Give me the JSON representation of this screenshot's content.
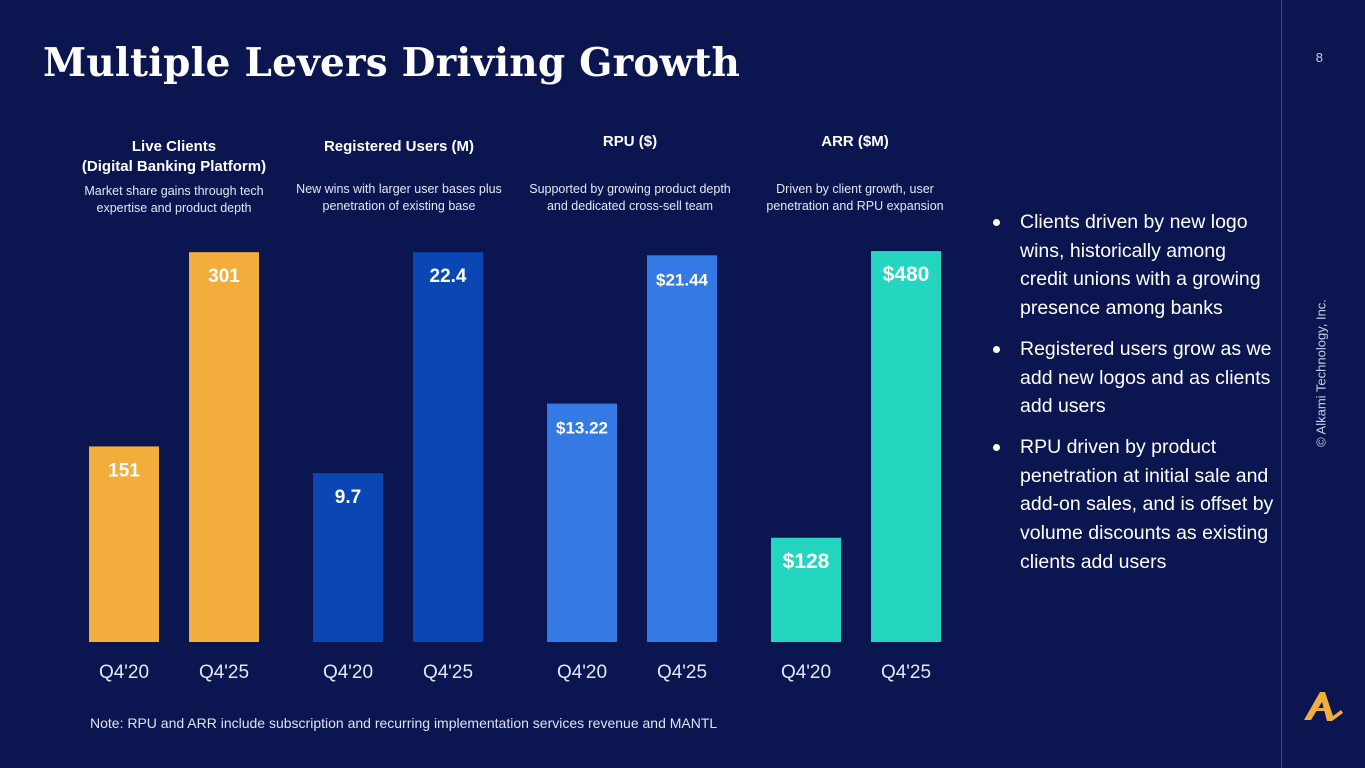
{
  "slide": {
    "title": "Multiple Levers Driving Growth",
    "page_number": "8",
    "copyright": "© Alkami Technology, Inc.",
    "note": "Note: RPU and ARR include subscription and recurring implementation services revenue and MANTL"
  },
  "panels": [
    {
      "title": "Live Clients",
      "subtitle": "(Digital Banking Platform)",
      "description_1": "Market share gains through tech",
      "description_2": "expertise and product depth"
    },
    {
      "title": "Registered Users (M)",
      "description_1": "New wins with larger user bases plus",
      "description_2": "penetration of existing base"
    },
    {
      "title": "RPU ($)",
      "description_1": "Supported by growing product depth",
      "description_2": "and dedicated cross-sell team"
    },
    {
      "title": "ARR ($M)",
      "description_1": "Driven by client growth, user",
      "description_2": "penetration and RPU expansion"
    }
  ],
  "bullets": [
    "Clients driven by new logo wins, historically among credit unions with a growing presence among banks",
    "Registered users grow as we add new logos and as clients add users",
    "RPU driven by product penetration at initial sale and add-on sales, and is offset by volume discounts as existing clients add users"
  ],
  "chart_data": [
    {
      "type": "bar",
      "title": "Live Clients",
      "categories": [
        "Q4'20",
        "Q4'25"
      ],
      "values": [
        151,
        301
      ],
      "labels": [
        "151",
        "301"
      ],
      "ylim": [
        0,
        305
      ],
      "color": "#f2ad3c"
    },
    {
      "type": "bar",
      "title": "Registered Users (M)",
      "categories": [
        "Q4'20",
        "Q4'25"
      ],
      "values": [
        9.7,
        22.4
      ],
      "labels": [
        "9.7",
        "22.4"
      ],
      "ylim": [
        0,
        22.7
      ],
      "color": "#0a47b5"
    },
    {
      "type": "bar",
      "title": "RPU ($)",
      "categories": [
        "Q4'20",
        "Q4'25"
      ],
      "values": [
        13.22,
        21.44
      ],
      "labels": [
        "$13.22",
        "$21.44"
      ],
      "ylim": [
        0,
        21.9
      ],
      "color": "#3579e4"
    },
    {
      "type": "bar",
      "title": "ARR ($M)",
      "categories": [
        "Q4'20",
        "Q4'25"
      ],
      "values": [
        128,
        480
      ],
      "labels": [
        "$128",
        "$480"
      ],
      "ylim": [
        0,
        485
      ],
      "color": "#24d6bf"
    }
  ]
}
